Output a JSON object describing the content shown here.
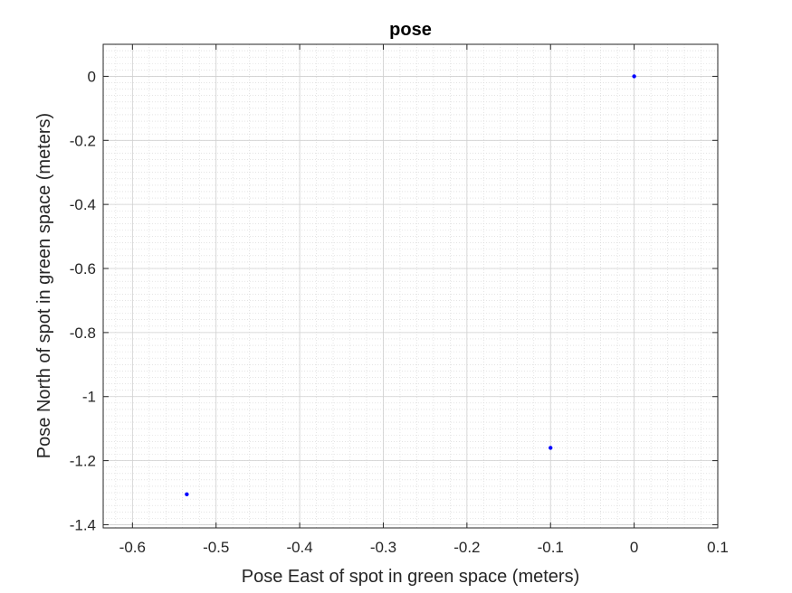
{
  "chart_data": {
    "type": "scatter",
    "title": "pose",
    "xlabel": "Pose East of spot in green space (meters)",
    "ylabel": "Pose North of spot in green space (meters)",
    "xlim": [
      -0.635,
      0.1
    ],
    "ylim": [
      -1.41,
      0.1
    ],
    "x_ticks": [
      -0.6,
      -0.5,
      -0.4,
      -0.3,
      -0.2,
      -0.1,
      0,
      0.1
    ],
    "x_tick_labels": [
      "-0.6",
      "-0.5",
      "-0.4",
      "-0.3",
      "-0.2",
      "-0.1",
      "0",
      "0.1"
    ],
    "y_ticks": [
      0,
      -0.2,
      -0.4,
      -0.6,
      -0.8,
      -1,
      -1.2,
      -1.4
    ],
    "y_tick_labels": [
      "0",
      "-0.2",
      "-0.4",
      "-0.6",
      "-0.8",
      "-1",
      "-1.2",
      "-1.4"
    ],
    "grid": true,
    "minor_grid": true,
    "marker_color": "#0000ff",
    "series": [
      {
        "points": [
          {
            "x": 0.0,
            "y": 0.0
          },
          {
            "x": -0.1,
            "y": -1.16
          },
          {
            "x": -0.535,
            "y": -1.305
          }
        ]
      }
    ]
  }
}
